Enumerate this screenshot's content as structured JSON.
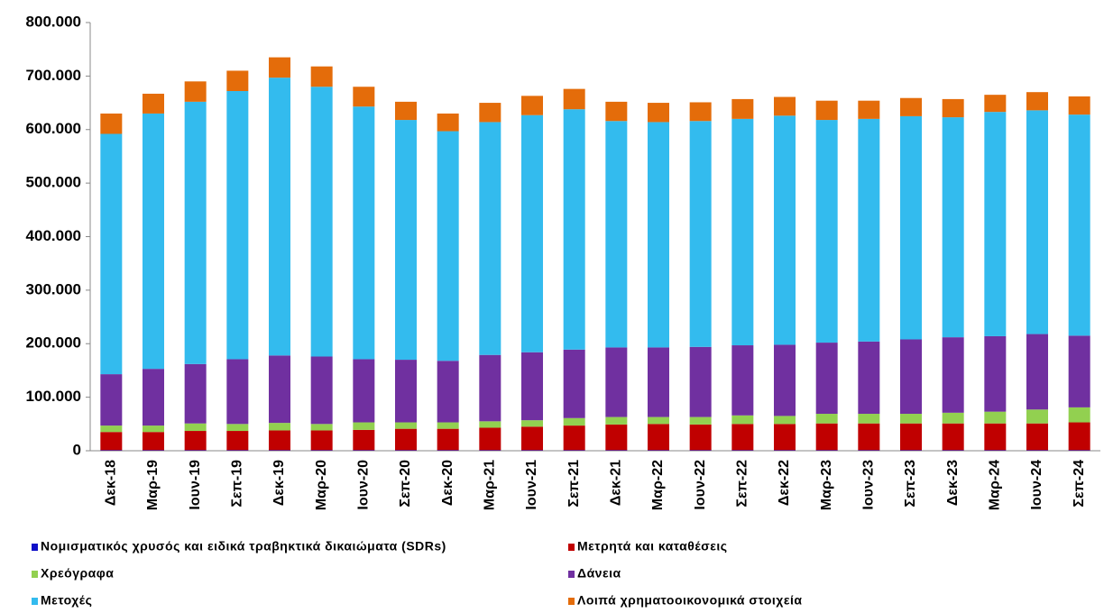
{
  "chart_data": {
    "type": "bar",
    "stacked": true,
    "categories": [
      "Δεκ-18",
      "Μαρ-19",
      "Ιουν-19",
      "Σεπ-19",
      "Δεκ-19",
      "Μαρ-20",
      "Ιουν-20",
      "Σεπ-20",
      "Δεκ-20",
      "Μαρ-21",
      "Ιουν-21",
      "Σεπ-21",
      "Δεκ-21",
      "Μαρ-22",
      "Ιουν-22",
      "Σεπ-22",
      "Δεκ-22",
      "Μαρ-23",
      "Ιουν-23",
      "Σεπ-23",
      "Δεκ-23",
      "Μαρ-24",
      "Ιουν-24",
      "Σεπ-24"
    ],
    "series": [
      {
        "name": "Νομισματικός χρυσός και ειδικά τραβηκτικά δικαιώματα (SDRs)",
        "color": "#1010c8",
        "values": [
          1000,
          1000,
          1000,
          1000,
          1000,
          1000,
          1000,
          1000,
          1000,
          1000,
          1000,
          1000,
          1000,
          1000,
          1000,
          1000,
          1000,
          1000,
          1000,
          1000,
          1000,
          1000,
          1000,
          1000
        ]
      },
      {
        "name": "Μετρητά και καταθέσεις",
        "color": "#c00000",
        "values": [
          34000,
          34000,
          36000,
          36000,
          37000,
          37000,
          38000,
          40000,
          40000,
          42000,
          44000,
          46000,
          48000,
          49000,
          48000,
          49000,
          49000,
          50000,
          50000,
          50000,
          50000,
          50000,
          50000,
          52000
        ]
      },
      {
        "name": "Χρεόγραφα",
        "color": "#92d050",
        "values": [
          12000,
          12000,
          14000,
          13000,
          14000,
          12000,
          14000,
          12000,
          12000,
          12000,
          12000,
          14000,
          14000,
          13000,
          14000,
          16000,
          15000,
          18000,
          18000,
          18000,
          20000,
          22000,
          26000,
          28000
        ]
      },
      {
        "name": "Δάνεια",
        "color": "#7030a0",
        "values": [
          96000,
          106000,
          111000,
          121000,
          126000,
          126000,
          118000,
          117000,
          115000,
          124000,
          127000,
          128000,
          130000,
          130000,
          131000,
          131000,
          133000,
          133000,
          135000,
          139000,
          141000,
          141000,
          141000,
          134000
        ]
      },
      {
        "name": "Μετοχές",
        "color": "#33bbee",
        "values": [
          449000,
          477000,
          490000,
          501000,
          519000,
          504000,
          472000,
          448000,
          429000,
          435000,
          443000,
          449000,
          423000,
          421000,
          422000,
          423000,
          428000,
          416000,
          416000,
          417000,
          411000,
          419000,
          418000,
          413000
        ]
      },
      {
        "name": "Λοιπά χρηματοοικονομικά στοιχεία",
        "color": "#e46c0a",
        "values": [
          38000,
          37000,
          38000,
          38000,
          38000,
          38000,
          37000,
          34000,
          33000,
          36000,
          36000,
          38000,
          36000,
          36000,
          35000,
          37000,
          35000,
          36000,
          34000,
          34000,
          34000,
          32000,
          34000,
          34000
        ]
      }
    ],
    "ylim": [
      0,
      800000
    ],
    "yticks": [
      0,
      {
        "value": 100000,
        "label": "100.000"
      },
      {
        "value": 200000,
        "label": "200.000"
      },
      {
        "value": 300000,
        "label": "300.000"
      },
      {
        "value": 400000,
        "label": "400.000"
      },
      {
        "value": 500000,
        "label": "500.000"
      },
      {
        "value": 600000,
        "label": "600.000"
      },
      {
        "value": 700000,
        "label": "700.000"
      },
      {
        "value": 800000,
        "label": "800.000"
      }
    ],
    "grid": false
  }
}
